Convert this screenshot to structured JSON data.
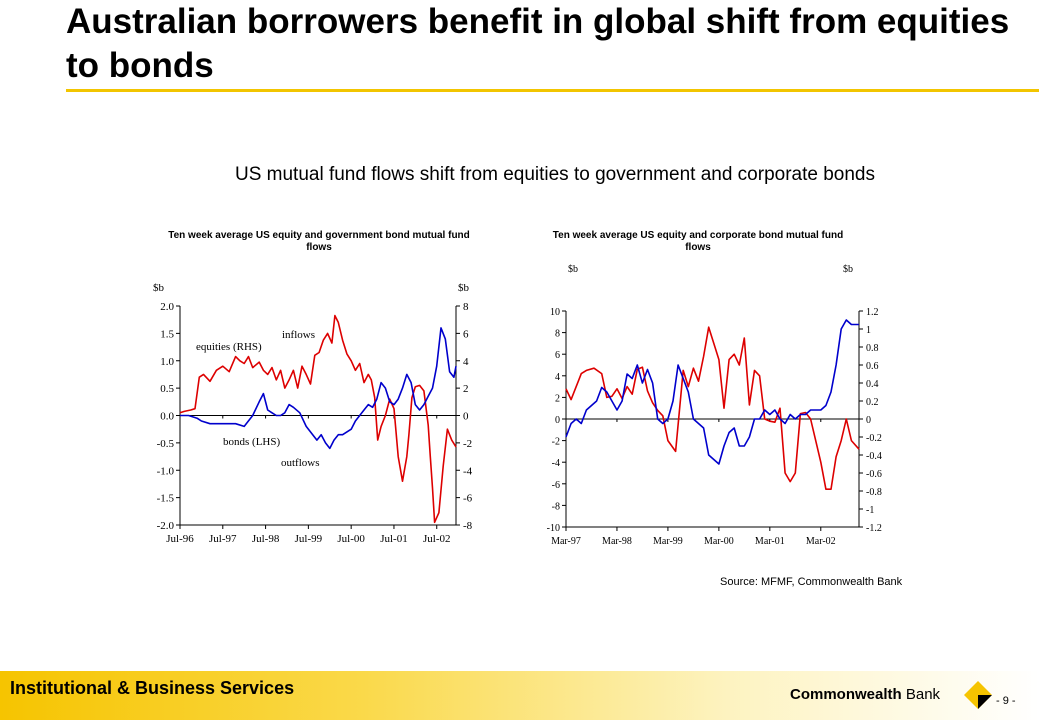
{
  "slide": {
    "title": "Australian borrowers benefit in global shift from equities to bonds",
    "subtitle": "US mutual fund flows shift from equities to government and corporate bonds",
    "source": "Source: MFMF, Commonwealth Bank",
    "footer": "Institutional & Business Services",
    "logo_text_bold": "Commonwealth",
    "logo_text_light": " Bank",
    "page_number": "- 9 -",
    "colors": {
      "accent": "#f2c500",
      "red": "#dd0000",
      "blue": "#0000cc"
    }
  },
  "chart_data": [
    {
      "type": "line",
      "title": "Ten week average US equity and government bond mutual fund flows",
      "left_unit": "$b",
      "right_unit": "$b",
      "ylim_left": [
        -2.0,
        2.0
      ],
      "yticks_left": [
        "2.0",
        "1.5",
        "1.0",
        "0.5",
        "0.0",
        "-0.5",
        "-1.0",
        "-1.5",
        "-2.0"
      ],
      "ylim_right": [
        -8,
        8
      ],
      "yticks_right": [
        "8",
        "6",
        "4",
        "2",
        "0",
        "-2",
        "-4",
        "-6",
        "-8"
      ],
      "x_range": [
        1996.5,
        2002.95
      ],
      "xticks": [
        {
          "x": 1996.5,
          "label": "Jul-96"
        },
        {
          "x": 1997.5,
          "label": "Jul-97"
        },
        {
          "x": 1998.5,
          "label": "Jul-98"
        },
        {
          "x": 1999.5,
          "label": "Jul-99"
        },
        {
          "x": 2000.5,
          "label": "Jul-00"
        },
        {
          "x": 2001.5,
          "label": "Jul-01"
        },
        {
          "x": 2002.5,
          "label": "Jul-02"
        }
      ],
      "annotations": [
        "inflows",
        "equities (RHS)",
        "bonds (LHS)",
        "outflows"
      ],
      "series": [
        {
          "name": "equities (RHS)",
          "axis": "right",
          "color": "#dd0000",
          "x": [
            1996.5,
            1996.6,
            1996.75,
            1996.85,
            1996.95,
            1997.05,
            1997.2,
            1997.35,
            1997.5,
            1997.65,
            1997.8,
            1997.9,
            1998.0,
            1998.1,
            1998.2,
            1998.35,
            1998.45,
            1998.55,
            1998.65,
            1998.75,
            1998.85,
            1998.95,
            1999.05,
            1999.15,
            1999.25,
            1999.35,
            1999.45,
            1999.55,
            1999.65,
            1999.75,
            1999.85,
            1999.95,
            2000.05,
            2000.12,
            2000.2,
            2000.3,
            2000.4,
            2000.5,
            2000.6,
            2000.7,
            2000.8,
            2000.9,
            2000.97,
            2001.05,
            2001.12,
            2001.2,
            2001.3,
            2001.4,
            2001.5,
            2001.6,
            2001.7,
            2001.8,
            2001.85,
            2001.92,
            2002.0,
            2002.1,
            2002.2,
            2002.3,
            2002.35,
            2002.4,
            2002.45,
            2002.55,
            2002.65,
            2002.75,
            2002.85,
            2002.95
          ],
          "y": [
            0.2,
            0.3,
            0.4,
            0.5,
            2.8,
            3.0,
            2.5,
            3.3,
            3.6,
            3.2,
            4.3,
            4.0,
            3.8,
            4.3,
            3.5,
            3.9,
            3.3,
            3.0,
            3.5,
            2.6,
            3.3,
            2.0,
            2.6,
            3.3,
            2.0,
            3.6,
            3.0,
            2.3,
            4.4,
            4.6,
            5.5,
            6.0,
            5.3,
            7.3,
            6.8,
            5.5,
            4.5,
            4.0,
            3.3,
            3.8,
            2.4,
            3.0,
            2.6,
            1.3,
            -1.8,
            -0.8,
            0.0,
            1.2,
            0.5,
            -3.0,
            -4.8,
            -3.0,
            -1.4,
            1.3,
            2.1,
            2.2,
            1.8,
            -0.7,
            -3.0,
            -5.3,
            -7.8,
            -7.1,
            -3.7,
            -1.0,
            -1.8,
            -2.3
          ]
        },
        {
          "name": "bonds (LHS)",
          "axis": "left",
          "color": "#0000cc",
          "x": [
            1996.5,
            1996.7,
            1996.9,
            1997.0,
            1997.2,
            1997.4,
            1997.6,
            1997.8,
            1998.0,
            1998.2,
            1998.35,
            1998.45,
            1998.55,
            1998.65,
            1998.75,
            1998.85,
            1998.95,
            1999.05,
            1999.15,
            1999.3,
            1999.45,
            1999.6,
            1999.7,
            1999.8,
            1999.9,
            2000.0,
            2000.1,
            2000.2,
            2000.3,
            2000.4,
            2000.5,
            2000.6,
            2000.7,
            2000.8,
            2000.9,
            2001.0,
            2001.1,
            2001.2,
            2001.3,
            2001.4,
            2001.5,
            2001.6,
            2001.7,
            2001.8,
            2001.9,
            2002.0,
            2002.1,
            2002.2,
            2002.3,
            2002.4,
            2002.5,
            2002.6,
            2002.7,
            2002.8,
            2002.9,
            2002.95
          ],
          "y": [
            0.0,
            0.0,
            -0.05,
            -0.1,
            -0.15,
            -0.15,
            -0.15,
            -0.15,
            -0.2,
            0.0,
            0.25,
            0.4,
            0.1,
            0.05,
            0.0,
            0.0,
            0.05,
            0.2,
            0.15,
            0.05,
            -0.2,
            -0.35,
            -0.45,
            -0.35,
            -0.5,
            -0.6,
            -0.45,
            -0.35,
            -0.35,
            -0.3,
            -0.25,
            -0.1,
            0.0,
            0.1,
            0.2,
            0.15,
            0.3,
            0.6,
            0.5,
            0.25,
            0.2,
            0.3,
            0.5,
            0.75,
            0.6,
            0.2,
            0.1,
            0.2,
            0.35,
            0.5,
            0.9,
            1.6,
            1.4,
            0.8,
            0.7,
            0.9
          ]
        }
      ]
    },
    {
      "type": "line",
      "title": "Ten week average US equity and corporate bond mutual fund flows",
      "left_unit": "$b",
      "right_unit": "$b",
      "ylim_left": [
        -10,
        10
      ],
      "yticks_left": [
        "10",
        "8",
        "6",
        "4",
        "2",
        "0",
        "-2",
        "-4",
        "-6",
        "-8",
        "-10"
      ],
      "ylim_right": [
        -1.2,
        1.2
      ],
      "yticks_right": [
        "1.2",
        "1",
        "0.8",
        "0.6",
        "0.4",
        "0.2",
        "0",
        "-0.2",
        "-0.4",
        "-0.6",
        "-0.8",
        "-1",
        "-1.2"
      ],
      "x_range": [
        1997.2,
        2002.95
      ],
      "xticks": [
        {
          "x": 1997.2,
          "label": "Mar-97"
        },
        {
          "x": 1998.2,
          "label": "Mar-98"
        },
        {
          "x": 1999.2,
          "label": "Mar-99"
        },
        {
          "x": 2000.2,
          "label": "Mar-00"
        },
        {
          "x": 2001.2,
          "label": "Mar-01"
        },
        {
          "x": 2002.2,
          "label": "Mar-02"
        }
      ],
      "series": [
        {
          "name": "",
          "axis": "left",
          "color": "#dd0000",
          "x": [
            1997.2,
            1997.3,
            1997.4,
            1997.5,
            1997.6,
            1997.75,
            1997.9,
            1998.0,
            1998.1,
            1998.2,
            1998.3,
            1998.4,
            1998.5,
            1998.6,
            1998.7,
            1998.8,
            1998.9,
            1999.0,
            1999.1,
            1999.2,
            1999.35,
            1999.5,
            1999.6,
            1999.7,
            1999.8,
            1999.9,
            2000.0,
            2000.1,
            2000.2,
            2000.3,
            2000.4,
            2000.5,
            2000.6,
            2000.7,
            2000.8,
            2000.9,
            2001.0,
            2001.1,
            2001.2,
            2001.3,
            2001.4,
            2001.5,
            2001.6,
            2001.7,
            2001.8,
            2001.9,
            2002.0,
            2002.1,
            2002.2,
            2002.3,
            2002.4,
            2002.5,
            2002.6,
            2002.7,
            2002.8,
            2002.95
          ],
          "y": [
            2.8,
            1.8,
            3.0,
            4.2,
            4.5,
            4.7,
            4.2,
            2.0,
            2.1,
            2.8,
            1.9,
            3.0,
            2.3,
            4.6,
            4.8,
            2.6,
            1.5,
            0.8,
            0.3,
            -2.0,
            -3.0,
            4.5,
            3.0,
            4.7,
            3.5,
            5.8,
            8.5,
            7.0,
            5.5,
            1.0,
            5.5,
            6.0,
            5.0,
            7.5,
            1.3,
            4.5,
            4.0,
            0.0,
            -0.2,
            -0.3,
            1.0,
            -5.0,
            -5.8,
            -5.0,
            0.5,
            0.6,
            0.0,
            -2.0,
            -4.0,
            -6.5,
            -6.5,
            -3.5,
            -2.0,
            0.0,
            -2.0,
            -2.8
          ]
        },
        {
          "name": "",
          "axis": "right",
          "color": "#0000cc",
          "x": [
            1997.2,
            1997.3,
            1997.4,
            1997.5,
            1997.6,
            1997.7,
            1997.8,
            1997.9,
            1998.0,
            1998.1,
            1998.2,
            1998.3,
            1998.4,
            1998.5,
            1998.6,
            1998.7,
            1998.8,
            1998.9,
            1999.0,
            1999.1,
            1999.2,
            1999.3,
            1999.4,
            1999.5,
            1999.6,
            1999.7,
            1999.8,
            1999.9,
            2000.0,
            2000.1,
            2000.2,
            2000.3,
            2000.4,
            2000.5,
            2000.6,
            2000.7,
            2000.8,
            2000.9,
            2001.0,
            2001.1,
            2001.2,
            2001.3,
            2001.4,
            2001.5,
            2001.6,
            2001.7,
            2001.8,
            2001.9,
            2002.0,
            2002.1,
            2002.2,
            2002.3,
            2002.4,
            2002.5,
            2002.6,
            2002.7,
            2002.8,
            2002.95
          ],
          "y": [
            -0.2,
            -0.05,
            0.0,
            -0.05,
            0.1,
            0.15,
            0.2,
            0.35,
            0.3,
            0.2,
            0.1,
            0.2,
            0.5,
            0.45,
            0.6,
            0.4,
            0.55,
            0.4,
            0.0,
            -0.05,
            0.0,
            0.2,
            0.6,
            0.45,
            0.3,
            0.0,
            -0.05,
            -0.1,
            -0.4,
            -0.45,
            -0.5,
            -0.3,
            -0.15,
            -0.1,
            -0.3,
            -0.3,
            -0.2,
            0.0,
            0.0,
            0.1,
            0.05,
            0.1,
            0.0,
            -0.05,
            0.05,
            0.0,
            0.05,
            0.05,
            0.1,
            0.1,
            0.1,
            0.15,
            0.3,
            0.6,
            1.0,
            1.1,
            1.05,
            1.05
          ]
        }
      ]
    }
  ]
}
